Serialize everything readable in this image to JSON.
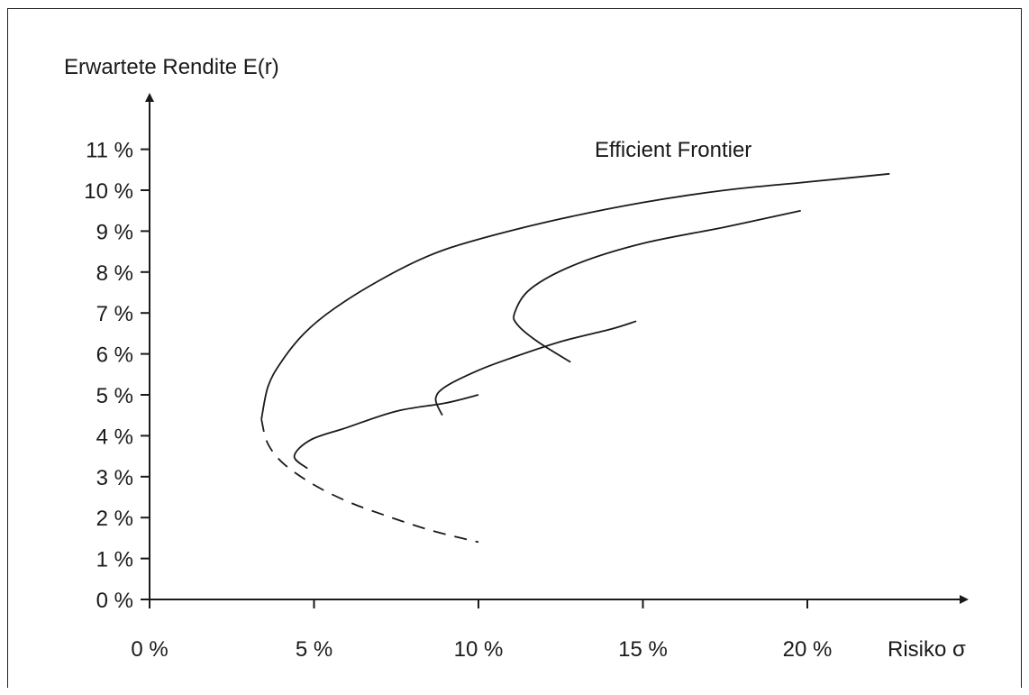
{
  "chart_data": {
    "type": "line",
    "title": "",
    "annotation": "Efficient Frontier",
    "xlabel": "Risiko σ",
    "ylabel": "Erwartete Rendite E(r)",
    "xlim": [
      0,
      25
    ],
    "ylim": [
      0,
      12
    ],
    "x_ticks": [
      {
        "value": 0,
        "label": "0 %"
      },
      {
        "value": 5,
        "label": "5 %"
      },
      {
        "value": 10,
        "label": "10 %"
      },
      {
        "value": 15,
        "label": "15 %"
      },
      {
        "value": 20,
        "label": "20 %"
      }
    ],
    "y_ticks": [
      {
        "value": 0,
        "label": "0 %"
      },
      {
        "value": 1,
        "label": "1 %"
      },
      {
        "value": 2,
        "label": "2 %"
      },
      {
        "value": 3,
        "label": "3 %"
      },
      {
        "value": 4,
        "label": "4 %"
      },
      {
        "value": 5,
        "label": "5 %"
      },
      {
        "value": 6,
        "label": "6 %"
      },
      {
        "value": 7,
        "label": "7 %"
      },
      {
        "value": 8,
        "label": "8 %"
      },
      {
        "value": 9,
        "label": "9 %"
      },
      {
        "value": 10,
        "label": "10 %"
      },
      {
        "value": 11,
        "label": "11 %"
      }
    ],
    "grid": false,
    "series": [
      {
        "style": "solid",
        "points": [
          [
            3.4,
            4.4
          ],
          [
            3.6,
            5.2
          ],
          [
            4.0,
            5.8
          ],
          [
            4.7,
            6.5
          ],
          [
            5.6,
            7.1
          ],
          [
            7.0,
            7.8
          ],
          [
            8.5,
            8.4
          ],
          [
            10.0,
            8.8
          ],
          [
            12.5,
            9.3
          ],
          [
            15.0,
            9.7
          ],
          [
            17.5,
            10.0
          ],
          [
            20.0,
            10.2
          ],
          [
            22.5,
            10.4
          ]
        ]
      },
      {
        "style": "dashed",
        "points": [
          [
            3.4,
            4.4
          ],
          [
            3.6,
            3.8
          ],
          [
            4.1,
            3.3
          ],
          [
            5.0,
            2.8
          ],
          [
            6.0,
            2.4
          ],
          [
            7.0,
            2.1
          ],
          [
            8.5,
            1.7
          ],
          [
            10.0,
            1.4
          ]
        ]
      },
      {
        "style": "solid",
        "points": [
          [
            4.8,
            3.2
          ],
          [
            4.4,
            3.5
          ],
          [
            4.9,
            3.9
          ],
          [
            6.0,
            4.2
          ],
          [
            7.5,
            4.6
          ],
          [
            9.0,
            4.8
          ],
          [
            10.0,
            5.0
          ]
        ]
      },
      {
        "style": "solid",
        "points": [
          [
            8.9,
            4.5
          ],
          [
            8.7,
            4.9
          ],
          [
            9.0,
            5.2
          ],
          [
            10.0,
            5.6
          ],
          [
            11.0,
            5.9
          ],
          [
            12.5,
            6.3
          ],
          [
            14.0,
            6.6
          ],
          [
            14.8,
            6.8
          ]
        ]
      },
      {
        "style": "solid",
        "points": [
          [
            12.8,
            5.8
          ],
          [
            11.8,
            6.3
          ],
          [
            11.2,
            6.7
          ],
          [
            11.1,
            7.0
          ],
          [
            11.6,
            7.6
          ],
          [
            13.0,
            8.2
          ],
          [
            15.0,
            8.7
          ],
          [
            17.5,
            9.1
          ],
          [
            19.8,
            9.5
          ]
        ]
      }
    ]
  }
}
